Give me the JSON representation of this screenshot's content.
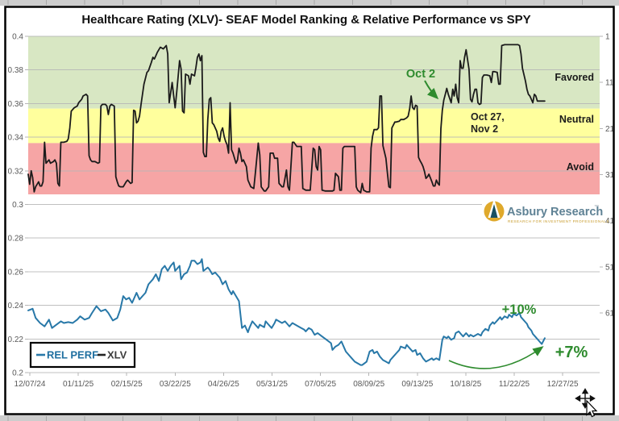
{
  "title": "Healthcare Rating (XLV)- SEAF Model Ranking & Relative Performance vs SPY",
  "branding": {
    "name": "Asbury Research",
    "trademark": "™",
    "tagline": "RESEARCH FOR INVESTMENT PROFESSIONALS"
  },
  "legend": {
    "items": [
      {
        "label": "REL PERF",
        "color": "#1f6fa0"
      },
      {
        "label": "XLV",
        "color": "#3d3d3d"
      }
    ]
  },
  "annotations": {
    "signal_date": "Oct 2",
    "revisit_dates_line1": "Oct 27,",
    "revisit_dates_line2": "Nov 2",
    "peak_gain": "+10%",
    "current_gain": "+7%",
    "annotation_color": "#2e8b2e"
  },
  "chart_data": {
    "type": "line",
    "title": "Healthcare Rating (XLV)- SEAF Model Ranking & Relative Performance vs SPY",
    "x_axis": {
      "tick_labels": [
        "12/07/24",
        "01/11/25",
        "02/15/25",
        "03/22/25",
        "04/26/25",
        "05/31/25",
        "07/05/25",
        "08/09/25",
        "09/13/25",
        "10/18/25",
        "11/22/25",
        "12/27/25"
      ],
      "span_days": 385
    },
    "y_axis_left": {
      "tick_labels": [
        "0.4",
        "0.38",
        "0.36",
        "0.34",
        "0.32",
        "0.3",
        "0.28",
        "0.26",
        "0.24",
        "0.22",
        "0.2"
      ],
      "tick_values": [
        0.4,
        0.38,
        0.36,
        0.34,
        0.32,
        0.3,
        0.28,
        0.26,
        0.24,
        0.22,
        0.2
      ],
      "range": [
        0.2,
        0.4
      ]
    },
    "y_axis_right": {
      "tick_labels": [
        "1",
        "11",
        "21",
        "31",
        "41",
        "51",
        "61"
      ],
      "top_rank": 1,
      "step": 10
    },
    "zones": [
      {
        "label": "Favored",
        "min": 0.357,
        "max": 0.4,
        "color": "#d8e7c3"
      },
      {
        "label": "Neutral",
        "min": 0.3365,
        "max": 0.357,
        "color": "#ffff9d"
      },
      {
        "label": "Avoid",
        "min": 0.306,
        "max": 0.3365,
        "color": "#f6a5a5"
      }
    ],
    "series": [
      {
        "name": "XLV",
        "color": "#1b1b1b",
        "width": 1.8,
        "days": [
          0,
          1,
          2,
          3,
          4,
          5,
          7,
          8,
          9,
          10,
          11,
          12,
          14,
          15,
          17,
          18,
          19,
          20,
          21,
          22,
          24,
          26,
          27,
          28,
          29,
          31,
          33,
          34,
          36,
          37,
          39,
          40,
          41,
          42,
          43,
          45,
          47,
          48,
          49,
          50,
          52,
          53,
          54,
          55,
          56,
          58,
          59,
          60,
          61,
          62,
          64,
          66,
          67,
          69,
          70,
          71,
          72,
          73,
          74,
          75,
          76,
          77,
          78,
          80,
          81,
          83,
          84,
          85,
          86,
          87,
          89,
          91,
          92,
          93,
          94,
          95,
          96,
          97,
          98,
          99,
          100,
          102,
          103,
          104,
          105,
          106,
          108,
          109,
          110,
          112,
          113,
          114,
          115,
          116,
          117,
          118,
          119,
          120,
          121,
          122,
          123,
          124,
          125,
          127,
          128,
          129,
          130,
          131,
          132,
          133,
          134,
          135,
          136,
          137,
          138,
          140,
          141,
          142,
          143,
          144,
          145,
          147,
          148,
          150,
          152,
          153,
          155,
          156,
          157,
          159,
          160,
          162,
          163,
          165,
          166,
          168,
          169,
          171,
          172,
          174,
          175,
          176,
          178,
          179,
          181,
          182,
          184,
          185,
          187,
          188,
          190,
          192,
          193,
          194,
          195,
          196,
          197,
          198,
          200,
          201,
          203,
          205,
          206,
          207,
          209,
          210,
          211,
          212,
          213,
          216,
          218,
          220,
          221,
          222,
          224,
          225,
          226,
          228,
          230,
          231,
          232,
          233,
          235,
          236,
          237,
          238,
          239,
          241,
          242,
          243,
          244,
          245,
          247,
          248,
          250,
          251,
          253,
          255,
          256,
          257,
          258,
          259,
          260,
          261,
          262,
          263,
          264,
          265,
          266,
          267,
          268,
          269,
          270,
          272,
          273,
          274,
          275,
          276,
          277,
          278,
          279,
          280,
          281,
          282,
          283,
          285,
          286,
          287,
          288,
          289,
          290,
          291,
          292,
          293,
          294,
          295,
          297,
          298,
          299,
          300,
          301,
          302,
          303,
          304,
          305,
          306,
          307,
          309,
          311,
          312,
          313,
          314,
          316,
          317,
          318,
          319,
          321,
          323,
          325,
          327,
          330,
          331,
          332,
          333,
          335,
          336,
          337,
          338,
          339,
          340,
          341,
          342,
          343,
          344,
          345,
          346,
          348
        ],
        "values": [
          0.318,
          0.312,
          0.32,
          0.316,
          0.3075,
          0.3105,
          0.3135,
          0.311,
          0.311,
          0.3135,
          0.337,
          0.3245,
          0.3265,
          0.3245,
          0.3255,
          0.3265,
          0.3245,
          0.3125,
          0.311,
          0.337,
          0.337,
          0.3375,
          0.339,
          0.3455,
          0.3555,
          0.3575,
          0.3585,
          0.3605,
          0.3625,
          0.3645,
          0.3655,
          0.3645,
          0.329,
          0.3265,
          0.3255,
          0.3255,
          0.3245,
          0.325,
          0.3585,
          0.3595,
          0.3595,
          0.3585,
          0.3535,
          0.3585,
          0.3595,
          0.3585,
          0.3165,
          0.3135,
          0.311,
          0.3105,
          0.3105,
          0.3135,
          0.3145,
          0.3125,
          0.313,
          0.356,
          0.3555,
          0.3485,
          0.3495,
          0.3525,
          0.3595,
          0.3655,
          0.3715,
          0.3785,
          0.3795,
          0.3845,
          0.3875,
          0.3865,
          0.3885,
          0.3905,
          0.3935,
          0.3925,
          0.3935,
          0.3945,
          0.3895,
          0.3605,
          0.3665,
          0.3725,
          0.3645,
          0.3575,
          0.3665,
          0.3855,
          0.3805,
          0.3555,
          0.3545,
          0.3775,
          0.3765,
          0.3715,
          0.3775,
          0.3765,
          0.3815,
          0.3875,
          0.3895,
          0.3855,
          0.3885,
          0.331,
          0.3285,
          0.3285,
          0.3505,
          0.3625,
          0.3635,
          0.3485,
          0.3475,
          0.3435,
          0.3395,
          0.3375,
          0.3435,
          0.3455,
          0.3405,
          0.3375,
          0.3355,
          0.3305,
          0.3605,
          0.3325,
          0.3305,
          0.3245,
          0.3265,
          0.3335,
          0.3305,
          0.3255,
          0.3265,
          0.3225,
          0.3145,
          0.3105,
          0.3095,
          0.3185,
          0.3365,
          0.3295,
          0.3105,
          0.308,
          0.308,
          0.3105,
          0.3305,
          0.3305,
          0.3275,
          0.3275,
          0.3125,
          0.3105,
          0.3105,
          0.3205,
          0.3105,
          0.3085,
          0.337,
          0.337,
          0.3345,
          0.3345,
          0.3345,
          0.3095,
          0.3085,
          0.3085,
          0.3085,
          0.3335,
          0.3325,
          0.3225,
          0.3205,
          0.3345,
          0.3325,
          0.3085,
          0.308,
          0.308,
          0.308,
          0.308,
          0.3085,
          0.3185,
          0.3165,
          0.3085,
          0.3085,
          0.3335,
          0.3345,
          0.3345,
          0.3345,
          0.3345,
          0.3105,
          0.3085,
          0.307,
          0.3125,
          0.3085,
          0.3075,
          0.3075,
          0.3335,
          0.3405,
          0.3445,
          0.3445,
          0.3455,
          0.3645,
          0.3645,
          0.335,
          0.3275,
          0.3185,
          0.3105,
          0.31,
          0.3455,
          0.349,
          0.349,
          0.3495,
          0.3505,
          0.3505,
          0.3515,
          0.3525,
          0.357,
          0.3645,
          0.3575,
          0.3565,
          0.359,
          0.3585,
          0.328,
          0.326,
          0.3245,
          0.3225,
          0.3195,
          0.3155,
          0.3165,
          0.318,
          0.3135,
          0.311,
          0.311,
          0.3145,
          0.3125,
          0.3115,
          0.345,
          0.356,
          0.362,
          0.3655,
          0.369,
          0.3655,
          0.3605,
          0.3685,
          0.3645,
          0.3715,
          0.3635,
          0.3605,
          0.3855,
          0.381,
          0.381,
          0.3875,
          0.392,
          0.3805,
          0.3625,
          0.361,
          0.3655,
          0.3685,
          0.3685,
          0.3605,
          0.3595,
          0.36,
          0.3755,
          0.377,
          0.377,
          0.3765,
          0.3725,
          0.379,
          0.379,
          0.3785,
          0.3715,
          0.3715,
          0.3945,
          0.395,
          0.395,
          0.395,
          0.395,
          0.395,
          0.3945,
          0.3895,
          0.381,
          0.3735,
          0.3685,
          0.3655,
          0.3645,
          0.3625,
          0.3605,
          0.3655,
          0.3645,
          0.3615,
          0.3615,
          0.3615,
          0.3615,
          0.3615
        ]
      },
      {
        "name": "REL PERF",
        "color": "#2878a8",
        "width": 2,
        "days": [
          0,
          3,
          5,
          8,
          11,
          14,
          16,
          19,
          22,
          24,
          27,
          30,
          33,
          35,
          38,
          41,
          43,
          46,
          49,
          52,
          54,
          57,
          60,
          62,
          64,
          66,
          68,
          70,
          72,
          73,
          75,
          77,
          79,
          81,
          84,
          86,
          88,
          90,
          92,
          94,
          96,
          98,
          99,
          102,
          103,
          105,
          107,
          109,
          110,
          112,
          114,
          116,
          117,
          118,
          121,
          122,
          124,
          126,
          128,
          129,
          131,
          133,
          135,
          137,
          138,
          140,
          142,
          144,
          146,
          148,
          149,
          151,
          153,
          155,
          156,
          159,
          160,
          162,
          164,
          166,
          167,
          169,
          171,
          173,
          175,
          176,
          178,
          180,
          182,
          184,
          186,
          187,
          189,
          191,
          193,
          195,
          198,
          201,
          204,
          205,
          207,
          209,
          211,
          213,
          214,
          216,
          218,
          220,
          222,
          224,
          225,
          228,
          230,
          232,
          233,
          235,
          237,
          239,
          241,
          243,
          244,
          246,
          248,
          250,
          251,
          254,
          255,
          257,
          259,
          261,
          262,
          264,
          266,
          268,
          270,
          272,
          273,
          275,
          277,
          279,
          280,
          282,
          283,
          285,
          287,
          288,
          290,
          292,
          293,
          295,
          297,
          298,
          300,
          301,
          303,
          305,
          306,
          308,
          310,
          311,
          313,
          314,
          316,
          318,
          319,
          321,
          323,
          324,
          326,
          327,
          329,
          331,
          332,
          334,
          336,
          337,
          339,
          340,
          342,
          344,
          345,
          346,
          348
        ],
        "values": [
          0.237,
          0.238,
          0.2325,
          0.2295,
          0.2275,
          0.2315,
          0.2265,
          0.2285,
          0.2305,
          0.2295,
          0.23,
          0.2295,
          0.2315,
          0.2335,
          0.2315,
          0.2325,
          0.2355,
          0.2395,
          0.2365,
          0.2375,
          0.2355,
          0.231,
          0.2325,
          0.2375,
          0.2455,
          0.2435,
          0.2445,
          0.2415,
          0.2455,
          0.2475,
          0.2435,
          0.2455,
          0.2475,
          0.2525,
          0.2555,
          0.2585,
          0.2545,
          0.2615,
          0.2635,
          0.2605,
          0.2635,
          0.2655,
          0.2605,
          0.2635,
          0.2555,
          0.2585,
          0.2595,
          0.2635,
          0.2665,
          0.2665,
          0.2645,
          0.2655,
          0.2675,
          0.2605,
          0.2625,
          0.2615,
          0.2585,
          0.2595,
          0.2575,
          0.2565,
          0.2525,
          0.2545,
          0.2495,
          0.2465,
          0.2485,
          0.2455,
          0.2425,
          0.2265,
          0.228,
          0.224,
          0.2265,
          0.2305,
          0.2285,
          0.2265,
          0.2285,
          0.227,
          0.2305,
          0.2285,
          0.2265,
          0.2295,
          0.2315,
          0.2305,
          0.2295,
          0.2305,
          0.2285,
          0.2275,
          0.2295,
          0.2285,
          0.2275,
          0.2265,
          0.2255,
          0.2245,
          0.2265,
          0.2255,
          0.2225,
          0.2235,
          0.2215,
          0.2195,
          0.2175,
          0.2135,
          0.2155,
          0.2165,
          0.2185,
          0.2145,
          0.2125,
          0.2105,
          0.2085,
          0.2065,
          0.2055,
          0.2045,
          0.2045,
          0.2065,
          0.2125,
          0.2135,
          0.2115,
          0.2125,
          0.2095,
          0.2075,
          0.2065,
          0.2055,
          0.2075,
          0.2095,
          0.2115,
          0.2135,
          0.2155,
          0.2145,
          0.2165,
          0.2145,
          0.2125,
          0.2135,
          0.2105,
          0.2115,
          0.2085,
          0.2065,
          0.2075,
          0.2085,
          0.2075,
          0.2085,
          0.2075,
          0.2195,
          0.2215,
          0.2205,
          0.2215,
          0.2195,
          0.2205,
          0.2235,
          0.2245,
          0.2225,
          0.2215,
          0.2235,
          0.2215,
          0.2225,
          0.2215,
          0.222,
          0.223,
          0.222,
          0.224,
          0.226,
          0.225,
          0.228,
          0.23,
          0.229,
          0.231,
          0.233,
          0.2315,
          0.2335,
          0.2325,
          0.2345,
          0.233,
          0.235,
          0.234,
          0.2355,
          0.233,
          0.231,
          0.229,
          0.227,
          0.225,
          0.223,
          0.221,
          0.219,
          0.218,
          0.217,
          0.2205
        ]
      }
    ]
  }
}
